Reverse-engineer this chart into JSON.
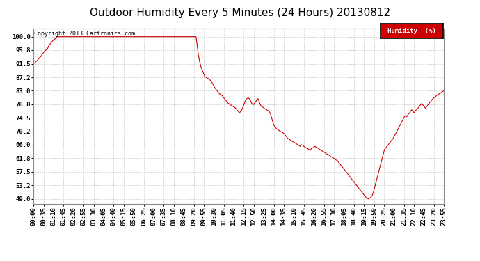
{
  "title": "Outdoor Humidity Every 5 Minutes (24 Hours) 20130812",
  "copyright_text": "Copyright 2013 Cartronics.com",
  "legend_label": "Humidity  (%)",
  "line_color": "#cc0000",
  "background_color": "#ffffff",
  "grid_color": "#bbbbbb",
  "ylabel_values": [
    100.0,
    95.8,
    91.5,
    87.2,
    83.0,
    78.8,
    74.5,
    70.2,
    66.0,
    61.8,
    57.5,
    53.2,
    49.0
  ],
  "ylim": [
    47.5,
    102.5
  ],
  "title_fontsize": 11,
  "tick_fontsize": 6.5,
  "humidity_data": [
    91.5,
    91.8,
    92.2,
    92.5,
    93.0,
    93.5,
    93.8,
    94.5,
    95.0,
    95.5,
    95.8,
    96.0,
    97.0,
    97.5,
    98.0,
    98.5,
    99.0,
    99.2,
    99.5,
    100.0,
    100.0,
    100.0,
    100.0,
    100.0,
    100.0,
    100.0,
    100.0,
    100.0,
    100.0,
    100.0,
    100.0,
    100.0,
    100.0,
    100.0,
    100.0,
    100.0,
    100.0,
    100.0,
    100.0,
    100.0,
    100.0,
    100.0,
    100.0,
    100.0,
    100.0,
    100.0,
    100.0,
    100.0,
    100.0,
    100.0,
    100.0,
    100.0,
    100.0,
    100.0,
    100.0,
    100.0,
    100.0,
    100.0,
    100.0,
    100.0,
    100.0,
    100.0,
    100.0,
    100.0,
    100.0,
    100.0,
    100.0,
    100.0,
    100.0,
    100.0,
    100.0,
    100.0,
    100.0,
    100.0,
    100.0,
    100.0,
    100.0,
    100.0,
    100.0,
    100.0,
    100.0,
    100.0,
    100.0,
    100.0,
    100.0,
    100.0,
    100.0,
    100.0,
    100.0,
    100.0,
    100.0,
    100.0,
    100.0,
    100.0,
    100.0,
    100.0,
    100.0,
    100.0,
    100.0,
    100.0,
    100.0,
    100.0,
    100.0,
    100.0,
    100.0,
    100.0,
    100.0,
    100.0,
    100.0,
    100.0,
    100.0,
    100.0,
    100.0,
    100.0,
    100.0,
    100.0,
    100.0,
    100.0,
    100.0,
    100.0,
    100.0,
    100.0,
    100.0,
    100.0,
    100.0,
    100.0,
    100.0,
    100.0,
    100.0,
    100.0,
    100.0,
    100.0,
    97.0,
    94.0,
    92.0,
    90.5,
    89.5,
    88.5,
    87.5,
    87.2,
    87.0,
    86.8,
    86.5,
    86.0,
    85.5,
    84.8,
    84.0,
    83.5,
    83.0,
    82.5,
    82.0,
    81.8,
    81.5,
    81.0,
    80.5,
    80.0,
    79.5,
    79.0,
    78.8,
    78.5,
    78.3,
    78.0,
    77.8,
    77.5,
    77.0,
    76.5,
    76.0,
    76.5,
    77.0,
    78.0,
    79.0,
    80.0,
    80.5,
    80.8,
    80.5,
    79.8,
    79.0,
    78.5,
    79.0,
    79.5,
    80.0,
    80.5,
    79.5,
    78.5,
    78.0,
    77.8,
    77.5,
    77.2,
    77.0,
    76.8,
    76.5,
    75.8,
    74.5,
    73.0,
    72.0,
    71.5,
    71.0,
    70.8,
    70.5,
    70.2,
    70.0,
    69.8,
    69.5,
    69.0,
    68.5,
    68.0,
    67.8,
    67.5,
    67.2,
    67.0,
    66.8,
    66.5,
    66.3,
    66.0,
    65.8,
    65.5,
    66.0,
    65.8,
    65.5,
    65.2,
    65.0,
    64.8,
    64.5,
    64.2,
    64.8,
    65.0,
    65.2,
    65.5,
    65.2,
    65.0,
    64.8,
    64.5,
    64.2,
    64.0,
    63.8,
    63.5,
    63.2,
    63.0,
    62.8,
    62.5,
    62.2,
    62.0,
    61.8,
    61.5,
    61.2,
    61.0,
    60.5,
    60.0,
    59.5,
    59.0,
    58.5,
    58.0,
    57.5,
    57.0,
    56.5,
    56.0,
    55.5,
    55.0,
    54.5,
    54.0,
    53.5,
    53.0,
    52.5,
    52.0,
    51.5,
    51.0,
    50.5,
    50.0,
    49.5,
    49.2,
    49.0,
    49.2,
    49.5,
    50.0,
    51.0,
    52.5,
    54.0,
    55.5,
    57.0,
    58.5,
    60.0,
    61.5,
    63.0,
    64.5,
    65.0,
    65.5,
    66.0,
    66.5,
    67.0,
    67.5,
    68.0,
    68.8,
    69.5,
    70.2,
    71.0,
    71.8,
    72.5,
    73.2,
    74.0,
    74.8,
    75.2,
    74.8,
    75.5,
    76.0,
    76.5,
    77.0,
    76.5,
    76.0,
    76.8,
    77.0,
    77.5,
    78.0,
    78.5,
    79.0,
    78.5,
    78.0,
    77.5,
    78.0,
    78.5,
    79.0,
    79.5,
    80.0,
    80.5,
    80.8,
    81.0,
    81.5,
    81.8,
    82.0,
    82.2,
    82.5,
    82.8,
    83.0
  ],
  "x_tick_labels": [
    "00:00",
    "00:35",
    "01:10",
    "01:45",
    "02:20",
    "02:55",
    "03:30",
    "04:05",
    "04:40",
    "05:15",
    "05:50",
    "06:25",
    "07:00",
    "07:35",
    "08:10",
    "08:45",
    "09:20",
    "09:55",
    "10:30",
    "11:05",
    "11:40",
    "12:15",
    "12:50",
    "13:25",
    "14:00",
    "14:35",
    "15:10",
    "15:45",
    "16:20",
    "16:55",
    "17:30",
    "18:05",
    "18:40",
    "19:15",
    "19:50",
    "20:25",
    "21:00",
    "21:35",
    "22:10",
    "22:45",
    "23:20",
    "23:55"
  ],
  "legend_box_color": "#cc0000",
  "legend_text_color": "#ffffff",
  "legend_border_color": "#000000"
}
